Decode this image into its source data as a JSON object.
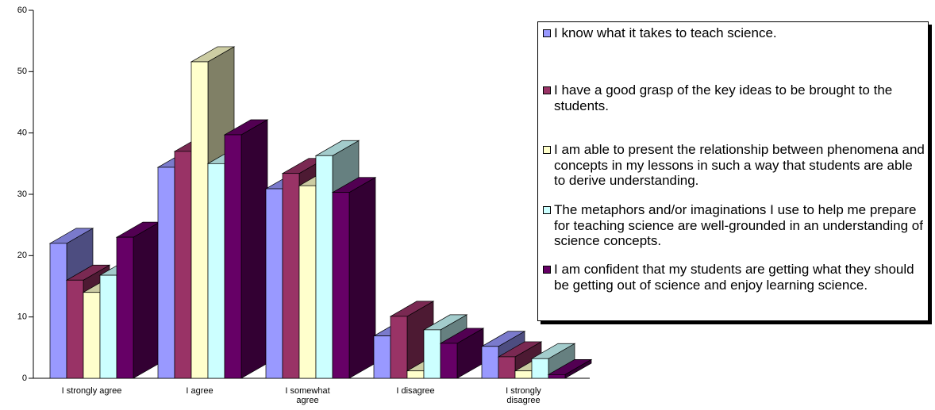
{
  "chart_data": {
    "type": "bar3d",
    "categories": [
      "I strongly agree",
      "I agree",
      "I somewhat agree",
      "I disagree",
      "I strongly disagree"
    ],
    "series": [
      {
        "name": "I know what it takes to teach science.",
        "color": "#9999ff",
        "values": [
          22,
          34.4,
          30.9,
          6.9,
          5.2
        ]
      },
      {
        "name": "I have a good grasp of the key ideas to be  brought to the students.",
        "color": "#993366",
        "values": [
          16,
          37,
          33.4,
          10.1,
          3.5
        ]
      },
      {
        "name": "I am able to present the relationship between phenomena and concepts in my lessons in such a way that students are able to derive understanding.",
        "color": "#ffffcc",
        "values": [
          14,
          51.6,
          31.4,
          1.2,
          1.2
        ]
      },
      {
        "name": "The metaphors and/or imaginations I use to help me prepare for teaching science are well-grounded in an understanding of science concepts.",
        "color": "#ccffff",
        "values": [
          16.8,
          35,
          36.3,
          7.9,
          3.2
        ]
      },
      {
        "name": "I am confident that my students are getting what they should be getting out of science and enjoy learning science.",
        "color": "#660066",
        "values": [
          23,
          39.7,
          30.3,
          5.7,
          0.6
        ]
      }
    ],
    "ylim": [
      0,
      60
    ],
    "yticks": [
      0,
      10,
      20,
      30,
      40,
      50,
      60
    ],
    "legend": "right"
  }
}
